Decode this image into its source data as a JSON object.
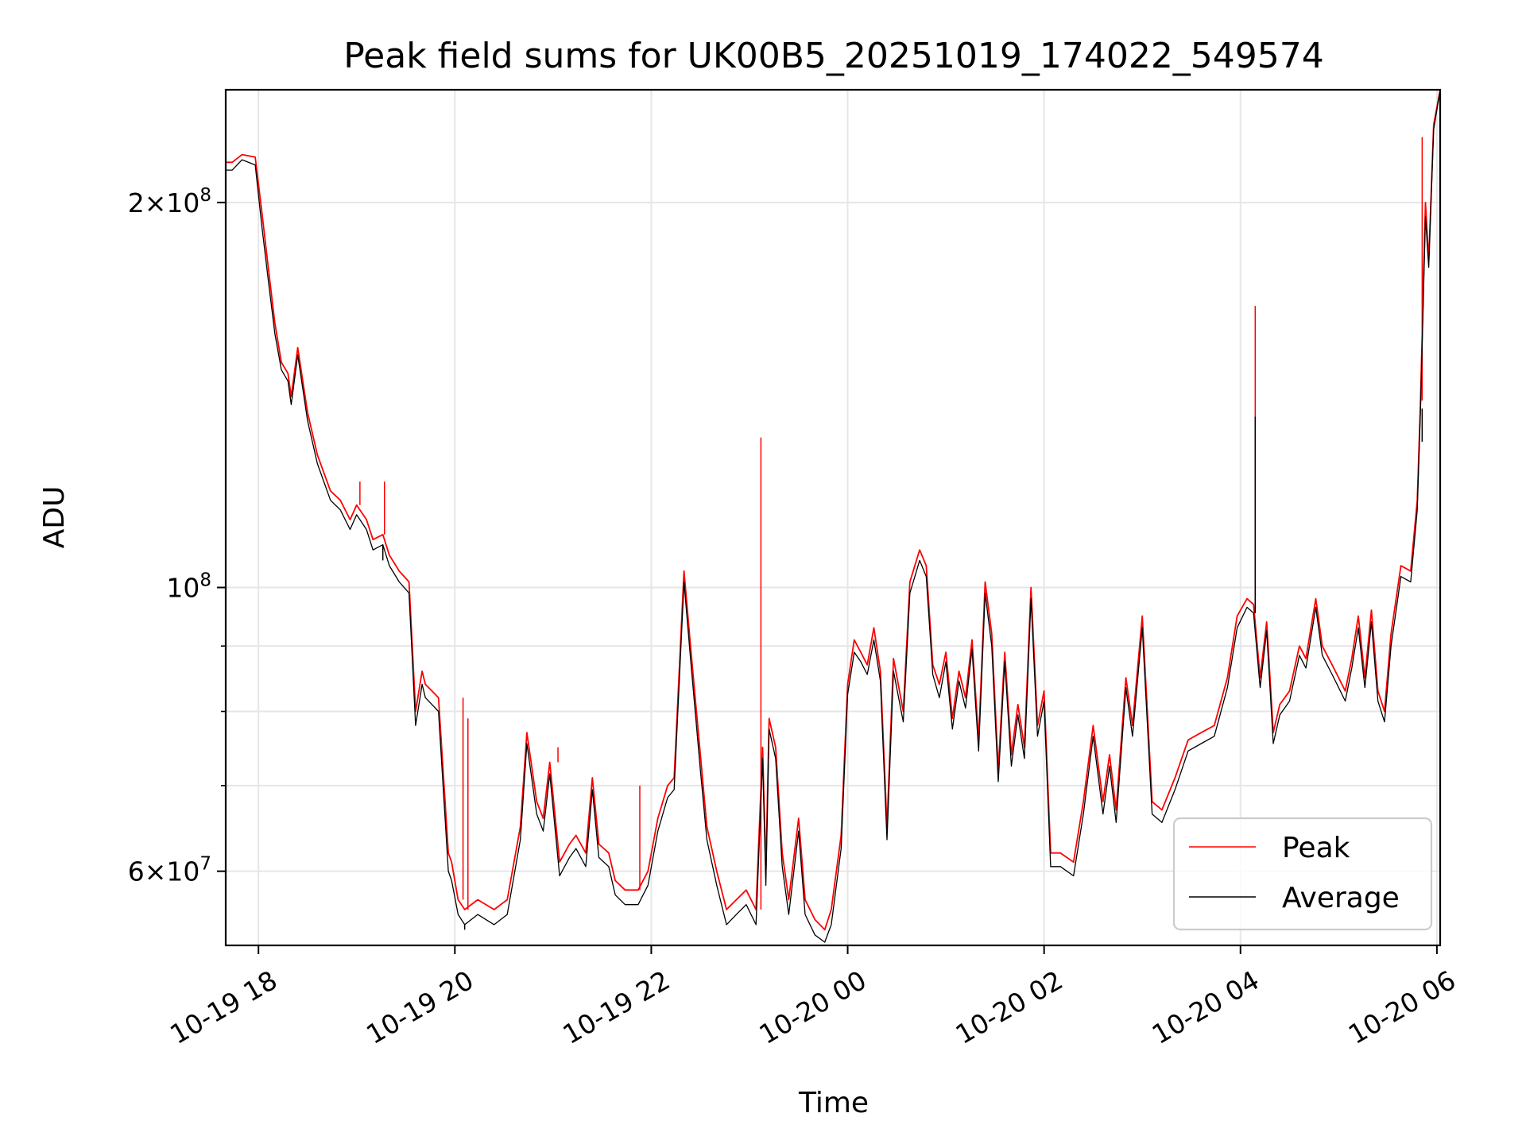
{
  "chart_data": {
    "type": "line",
    "title": "Peak field sums for UK00B5_20251019_174022_549574",
    "xlabel": "Time",
    "ylabel": "ADU",
    "yscale": "log",
    "ylim": [
      52500000,
      245000000
    ],
    "xlim": [
      "2025-10-19 17:40",
      "2025-10-20 06:02"
    ],
    "grid": true,
    "legend_position": "lower-right",
    "x_ticks": [
      {
        "value": "2025-10-19 18:00",
        "label": "10-19 18"
      },
      {
        "value": "2025-10-19 20:00",
        "label": "10-19 20"
      },
      {
        "value": "2025-10-19 22:00",
        "label": "10-19 22"
      },
      {
        "value": "2025-10-20 00:00",
        "label": "10-20 00"
      },
      {
        "value": "2025-10-20 02:00",
        "label": "10-20 02"
      },
      {
        "value": "2025-10-20 04:00",
        "label": "10-20 04"
      },
      {
        "value": "2025-10-20 06:00",
        "label": "10-20 06"
      }
    ],
    "y_ticks": [
      {
        "value": 60000000,
        "mantissa": "6",
        "exponent": "7"
      },
      {
        "value": 100000000,
        "mantissa": "",
        "exponent": "8"
      },
      {
        "value": 200000000,
        "mantissa": "2",
        "exponent": "8"
      }
    ],
    "y_minor_ticks": [
      70000000,
      80000000,
      90000000
    ],
    "x": [
      "2025-10-19 17:40",
      "2025-10-19 17:44",
      "2025-10-19 17:50",
      "2025-10-19 17:58",
      "2025-10-19 18:02",
      "2025-10-19 18:06",
      "2025-10-19 18:10",
      "2025-10-19 18:14",
      "2025-10-19 18:18",
      "2025-10-19 18:20",
      "2025-10-19 18:24",
      "2025-10-19 18:30",
      "2025-10-19 18:36",
      "2025-10-19 18:44",
      "2025-10-19 18:50",
      "2025-10-19 18:56",
      "2025-10-19 19:00",
      "2025-10-19 19:06",
      "2025-10-19 19:10",
      "2025-10-19 19:16",
      "2025-10-19 19:20",
      "2025-10-19 19:26",
      "2025-10-19 19:32",
      "2025-10-19 19:36",
      "2025-10-19 19:40",
      "2025-10-19 19:42",
      "2025-10-19 19:46",
      "2025-10-19 19:50",
      "2025-10-19 19:56",
      "2025-10-19 19:58",
      "2025-10-19 20:02",
      "2025-10-19 20:06",
      "2025-10-19 20:14",
      "2025-10-19 20:24",
      "2025-10-19 20:32",
      "2025-10-19 20:40",
      "2025-10-19 20:44",
      "2025-10-19 20:50",
      "2025-10-19 20:54",
      "2025-10-19 20:58",
      "2025-10-19 21:04",
      "2025-10-19 21:10",
      "2025-10-19 21:14",
      "2025-10-19 21:20",
      "2025-10-19 21:24",
      "2025-10-19 21:28",
      "2025-10-19 21:34",
      "2025-10-19 21:38",
      "2025-10-19 21:44",
      "2025-10-19 21:52",
      "2025-10-19 21:58",
      "2025-10-19 22:04",
      "2025-10-19 22:10",
      "2025-10-19 22:14",
      "2025-10-19 22:20",
      "2025-10-19 22:24",
      "2025-10-19 22:30",
      "2025-10-19 22:34",
      "2025-10-19 22:40",
      "2025-10-19 22:46",
      "2025-10-19 22:52",
      "2025-10-19 22:58",
      "2025-10-19 23:04",
      "2025-10-19 23:08",
      "2025-10-19 23:10",
      "2025-10-19 23:12",
      "2025-10-19 23:16",
      "2025-10-19 23:20",
      "2025-10-19 23:24",
      "2025-10-19 23:30",
      "2025-10-19 23:34",
      "2025-10-19 23:40",
      "2025-10-19 23:46",
      "2025-10-19 23:50",
      "2025-10-19 23:56",
      "2025-10-20 00:00",
      "2025-10-20 00:04",
      "2025-10-20 00:08",
      "2025-10-20 00:12",
      "2025-10-20 00:16",
      "2025-10-20 00:20",
      "2025-10-20 00:24",
      "2025-10-20 00:28",
      "2025-10-20 00:34",
      "2025-10-20 00:38",
      "2025-10-20 00:44",
      "2025-10-20 00:48",
      "2025-10-20 00:52",
      "2025-10-20 00:56",
      "2025-10-20 01:00",
      "2025-10-20 01:04",
      "2025-10-20 01:08",
      "2025-10-20 01:12",
      "2025-10-20 01:16",
      "2025-10-20 01:20",
      "2025-10-20 01:24",
      "2025-10-20 01:28",
      "2025-10-20 01:32",
      "2025-10-20 01:36",
      "2025-10-20 01:40",
      "2025-10-20 01:44",
      "2025-10-20 01:48",
      "2025-10-20 01:52",
      "2025-10-20 01:56",
      "2025-10-20 02:00",
      "2025-10-20 02:04",
      "2025-10-20 02:10",
      "2025-10-20 02:18",
      "2025-10-20 02:24",
      "2025-10-20 02:30",
      "2025-10-20 02:36",
      "2025-10-20 02:40",
      "2025-10-20 02:44",
      "2025-10-20 02:50",
      "2025-10-20 02:54",
      "2025-10-20 03:00",
      "2025-10-20 03:06",
      "2025-10-20 03:12",
      "2025-10-20 03:20",
      "2025-10-20 03:28",
      "2025-10-20 03:36",
      "2025-10-20 03:44",
      "2025-10-20 03:52",
      "2025-10-20 03:58",
      "2025-10-20 04:04",
      "2025-10-20 04:08",
      "2025-10-20 04:12",
      "2025-10-20 04:16",
      "2025-10-20 04:20",
      "2025-10-20 04:24",
      "2025-10-20 04:30",
      "2025-10-20 04:36",
      "2025-10-20 04:40",
      "2025-10-20 04:46",
      "2025-10-20 04:50",
      "2025-10-20 04:56",
      "2025-10-20 05:00",
      "2025-10-20 05:04",
      "2025-10-20 05:08",
      "2025-10-20 05:12",
      "2025-10-20 05:16",
      "2025-10-20 05:20",
      "2025-10-20 05:24",
      "2025-10-20 05:28",
      "2025-10-20 05:32",
      "2025-10-20 05:38",
      "2025-10-20 05:44",
      "2025-10-20 05:48",
      "2025-10-20 05:50",
      "2025-10-20 05:53",
      "2025-10-20 05:55",
      "2025-10-20 05:58",
      "2025-10-20 06:02"
    ],
    "series": [
      {
        "name": "Peak",
        "color": "#ff0000",
        "values": [
          215000000,
          215000000,
          218000000,
          217000000,
          197000000,
          178000000,
          161000000,
          150000000,
          147000000,
          141000000,
          154000000,
          137000000,
          127000000,
          119000000,
          117000000,
          113000000,
          116000000,
          113000000,
          109000000,
          110000000,
          106000000,
          103000000,
          101000000,
          80000000,
          86000000,
          84000000,
          83000000,
          82000000,
          62000000,
          61000000,
          57000000,
          56000000,
          57000000,
          56000000,
          57000000,
          65000000,
          77000000,
          68000000,
          66000000,
          73000000,
          61000000,
          63000000,
          64000000,
          62000000,
          71000000,
          63000000,
          62000000,
          59000000,
          58000000,
          58000000,
          60000000,
          66000000,
          70000000,
          71000000,
          103000000,
          90000000,
          74000000,
          65000000,
          60000000,
          56000000,
          57000000,
          58000000,
          56000000,
          75000000,
          60000000,
          79000000,
          75000000,
          62000000,
          57000000,
          66000000,
          57000000,
          55000000,
          54000000,
          56000000,
          64000000,
          84000000,
          91000000,
          89000000,
          87000000,
          93000000,
          86000000,
          65000000,
          88000000,
          80000000,
          101000000,
          107000000,
          104000000,
          87000000,
          84000000,
          89000000,
          79000000,
          86000000,
          82000000,
          91000000,
          76000000,
          101000000,
          92000000,
          72000000,
          89000000,
          74000000,
          81000000,
          75000000,
          100000000,
          78000000,
          83000000,
          62000000,
          62000000,
          61000000,
          68000000,
          78000000,
          68000000,
          74000000,
          67000000,
          85000000,
          78000000,
          95000000,
          68000000,
          67000000,
          71000000,
          76000000,
          77000000,
          78000000,
          85000000,
          95000000,
          98000000,
          97000000,
          85000000,
          94000000,
          77000000,
          81000000,
          83000000,
          90000000,
          88000000,
          98000000,
          90000000,
          87000000,
          85000000,
          83000000,
          88000000,
          95000000,
          85000000,
          96000000,
          83000000,
          80000000,
          92000000,
          104000000,
          103000000,
          117000000,
          140000000,
          200000000,
          180000000,
          230000000,
          245000000
        ],
        "spikes": [
          {
            "x": "2025-10-19 19:02",
            "value": 121000000
          },
          {
            "x": "2025-10-19 19:17",
            "value": 121000000
          },
          {
            "x": "2025-10-19 20:05",
            "value": 82000000
          },
          {
            "x": "2025-10-19 20:08",
            "value": 79000000
          },
          {
            "x": "2025-10-19 21:03",
            "value": 75000000
          },
          {
            "x": "2025-10-19 21:53",
            "value": 70000000
          },
          {
            "x": "2025-10-19 23:07",
            "value": 131000000
          },
          {
            "x": "2025-10-20 04:09",
            "value": 166000000
          },
          {
            "x": "2025-10-20 05:51",
            "value": 225000000
          }
        ]
      },
      {
        "name": "Average",
        "color": "#000000",
        "values": [
          212000000,
          212000000,
          216000000,
          214000000,
          192000000,
          174000000,
          158000000,
          148000000,
          145000000,
          139000000,
          152000000,
          135000000,
          125000000,
          117000000,
          115000000,
          111000000,
          114000000,
          111000000,
          107000000,
          108000000,
          104000000,
          101000000,
          99000000,
          78000000,
          84000000,
          82000000,
          81000000,
          80000000,
          60000000,
          59000000,
          55500000,
          54500000,
          55500000,
          54500000,
          55500000,
          63500000,
          75500000,
          66500000,
          64500000,
          71500000,
          59500000,
          61500000,
          62500000,
          60500000,
          69500000,
          61500000,
          60500000,
          57500000,
          56500000,
          56500000,
          58500000,
          64500000,
          68500000,
          69500000,
          101000000,
          88000000,
          72000000,
          63500000,
          58500000,
          54500000,
          55500000,
          56500000,
          54500000,
          73500000,
          58500000,
          77500000,
          73500000,
          60500000,
          55500000,
          64500000,
          55500000,
          53500000,
          52800000,
          54500000,
          62500000,
          82500000,
          89000000,
          87500000,
          85500000,
          91000000,
          84500000,
          63500000,
          86000000,
          78500000,
          99000000,
          105000000,
          102000000,
          85500000,
          82000000,
          87500000,
          77500000,
          84500000,
          80500000,
          89500000,
          74500000,
          99000000,
          90000000,
          70500000,
          87500000,
          72500000,
          79500000,
          73500000,
          98000000,
          76500000,
          81500000,
          60500000,
          60500000,
          59500000,
          66500000,
          76500000,
          66500000,
          72500000,
          65500000,
          83500000,
          76500000,
          93000000,
          66500000,
          65500000,
          69500000,
          74500000,
          75500000,
          76500000,
          83500000,
          93000000,
          96500000,
          95500000,
          83500000,
          92500000,
          75500000,
          79500000,
          81500000,
          88500000,
          86500000,
          96500000,
          88500000,
          85500000,
          83500000,
          81500000,
          86500000,
          93000000,
          83500000,
          94000000,
          81500000,
          78500000,
          90000000,
          102000000,
          101000000,
          115000000,
          138000000,
          195000000,
          178000000,
          228000000,
          245000000
        ],
        "spikes": [
          {
            "x": "2025-10-19 19:16",
            "value": 105000000
          },
          {
            "x": "2025-10-19 20:06",
            "value": 54000000
          },
          {
            "x": "2025-10-20 04:09",
            "value": 136000000
          },
          {
            "x": "2025-10-20 05:51",
            "value": 130000000
          }
        ]
      }
    ]
  }
}
